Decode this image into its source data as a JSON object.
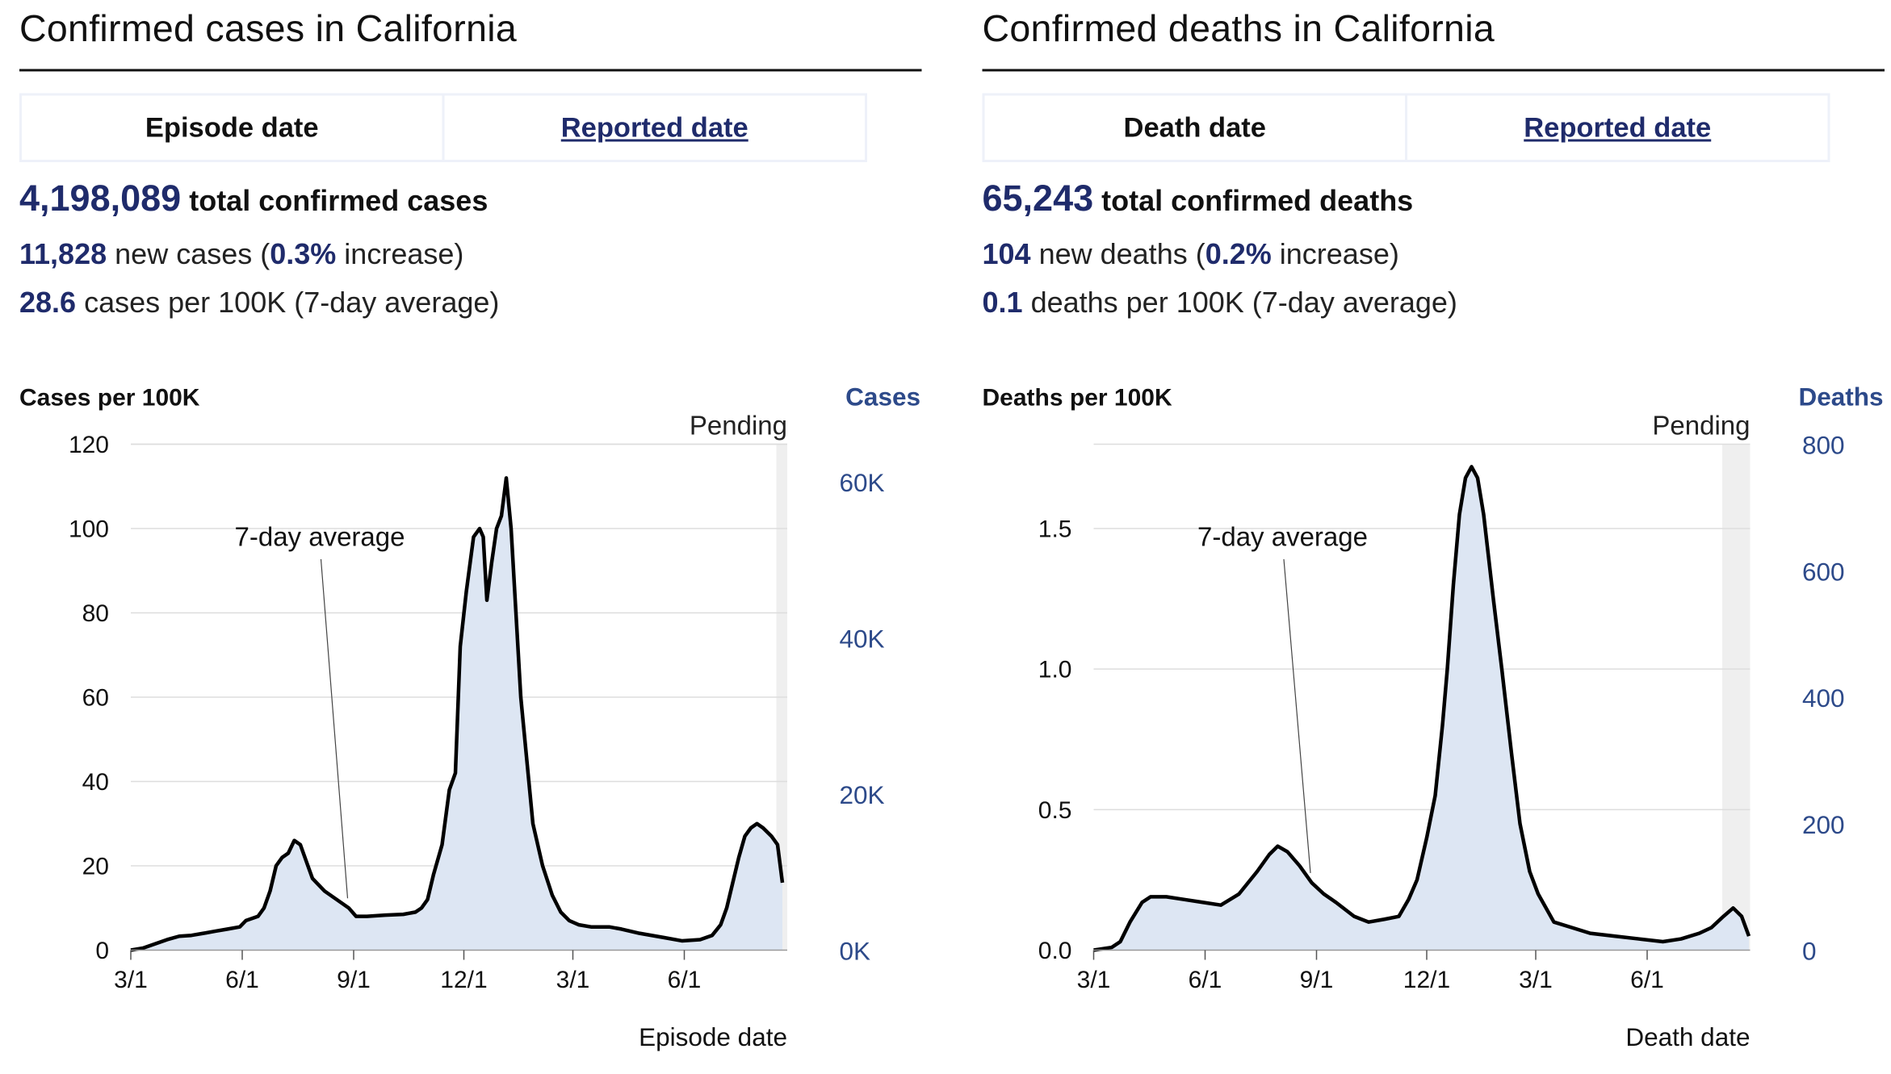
{
  "panels": [
    {
      "title": "Confirmed cases in California",
      "tabs": [
        {
          "label": "Episode date",
          "active": true
        },
        {
          "label": "Reported date",
          "active": false
        }
      ],
      "total": "4,198,089",
      "total_label": "total confirmed cases",
      "new_value": "11,828",
      "new_label": "new cases (",
      "pct": "0.3%",
      "pct_label": "increase)",
      "rate_value": "28.6",
      "rate_label": "cases per 100K (7-day average)"
    },
    {
      "title": "Confirmed deaths in California",
      "tabs": [
        {
          "label": "Death date",
          "active": true
        },
        {
          "label": "Reported date",
          "active": false
        }
      ],
      "total": "65,243",
      "total_label": "total confirmed deaths",
      "new_value": "104",
      "new_label": "new deaths (",
      "pct": "0.2%",
      "pct_label": "increase)",
      "rate_value": "0.1",
      "rate_label": "deaths per 100K (7-day average)"
    }
  ],
  "colors": {
    "navy": "#1f2b6b",
    "right_axis": "#2d4a8a",
    "area": "#dde6f3",
    "line": "#000000",
    "grid": "#dddddd",
    "pending": "#efefef"
  },
  "chart_data": [
    {
      "type": "area",
      "title": "Cases per 100K",
      "ylabel": "Cases per 100K",
      "ylabel_right": "Cases",
      "xlabel": "Episode date",
      "pending_label": "Pending",
      "annotation": "7-day average",
      "ylim": [
        0,
        120
      ],
      "yticks": [
        0,
        20,
        40,
        60,
        80,
        100,
        120
      ],
      "ylim_right": [
        0,
        64800
      ],
      "yticks_right": [
        {
          "value": 0,
          "label": "0K"
        },
        {
          "value": 20000,
          "label": "20K"
        },
        {
          "value": 40000,
          "label": "40K"
        },
        {
          "value": 60000,
          "label": "60K"
        }
      ],
      "xlim_days": [
        0,
        542
      ],
      "xticks": [
        {
          "day": 0,
          "label": "3/1"
        },
        {
          "day": 92,
          "label": "6/1"
        },
        {
          "day": 184,
          "label": "9/1"
        },
        {
          "day": 275,
          "label": "12/1"
        },
        {
          "day": 365,
          "label": "3/1"
        },
        {
          "day": 457,
          "label": "6/1"
        }
      ],
      "pending_from_day": 533,
      "annotation_point_day": 179,
      "series": [
        {
          "name": "7-day average",
          "points": [
            [
              0,
              0
            ],
            [
              10,
              0.5
            ],
            [
              20,
              1.5
            ],
            [
              30,
              2.5
            ],
            [
              40,
              3.3
            ],
            [
              50,
              3.5
            ],
            [
              60,
              4
            ],
            [
              70,
              4.5
            ],
            [
              80,
              5
            ],
            [
              90,
              5.5
            ],
            [
              95,
              7
            ],
            [
              105,
              8
            ],
            [
              110,
              10
            ],
            [
              115,
              14
            ],
            [
              120,
              20
            ],
            [
              125,
              22
            ],
            [
              130,
              23
            ],
            [
              135,
              26
            ],
            [
              140,
              25
            ],
            [
              145,
              21
            ],
            [
              150,
              17
            ],
            [
              160,
              14
            ],
            [
              170,
              12
            ],
            [
              180,
              10
            ],
            [
              186,
              8
            ],
            [
              195,
              8
            ],
            [
              210,
              8.3
            ],
            [
              225,
              8.5
            ],
            [
              235,
              9
            ],
            [
              240,
              10
            ],
            [
              245,
              12
            ],
            [
              250,
              18
            ],
            [
              257,
              25
            ],
            [
              263,
              38
            ],
            [
              268,
              42
            ],
            [
              272,
              72
            ],
            [
              277,
              85
            ],
            [
              283,
              98
            ],
            [
              288,
              100
            ],
            [
              291,
              98
            ],
            [
              294,
              83
            ],
            [
              298,
              92
            ],
            [
              302,
              100
            ],
            [
              306,
              103
            ],
            [
              310,
              112
            ],
            [
              314,
              100
            ],
            [
              318,
              80
            ],
            [
              322,
              60
            ],
            [
              327,
              45
            ],
            [
              332,
              30
            ],
            [
              340,
              20
            ],
            [
              348,
              13
            ],
            [
              355,
              9
            ],
            [
              362,
              7
            ],
            [
              370,
              6
            ],
            [
              380,
              5.5
            ],
            [
              395,
              5.5
            ],
            [
              405,
              5
            ],
            [
              420,
              4
            ],
            [
              440,
              3
            ],
            [
              455,
              2.2
            ],
            [
              470,
              2.5
            ],
            [
              480,
              3.5
            ],
            [
              487,
              6
            ],
            [
              492,
              10
            ],
            [
              497,
              16
            ],
            [
              502,
              22
            ],
            [
              507,
              27
            ],
            [
              512,
              29
            ],
            [
              517,
              30
            ],
            [
              522,
              29
            ],
            [
              529,
              27
            ],
            [
              534,
              25
            ],
            [
              538,
              16
            ]
          ]
        }
      ]
    },
    {
      "type": "area",
      "title": "Deaths per 100K",
      "ylabel": "Deaths per 100K",
      "ylabel_right": "Deaths",
      "xlabel": "Death date",
      "pending_label": "Pending",
      "annotation": "7-day average",
      "ylim": [
        0,
        1.8
      ],
      "yticks": [
        {
          "value": 0,
          "label": "0.0"
        },
        {
          "value": 0.5,
          "label": "0.5"
        },
        {
          "value": 1.0,
          "label": "1.0"
        },
        {
          "value": 1.5,
          "label": "1.5"
        }
      ],
      "ylim_right": [
        0,
        800
      ],
      "yticks_right": [
        {
          "value": 0,
          "label": "0"
        },
        {
          "value": 200,
          "label": "200"
        },
        {
          "value": 400,
          "label": "400"
        },
        {
          "value": 600,
          "label": "600"
        },
        {
          "value": 800,
          "label": "800"
        }
      ],
      "xlim_days": [
        0,
        542
      ],
      "xticks": [
        {
          "day": 0,
          "label": "3/1"
        },
        {
          "day": 92,
          "label": "6/1"
        },
        {
          "day": 184,
          "label": "9/1"
        },
        {
          "day": 275,
          "label": "12/1"
        },
        {
          "day": 365,
          "label": "3/1"
        },
        {
          "day": 457,
          "label": "6/1"
        }
      ],
      "pending_from_day": 519,
      "annotation_point_day": 179,
      "series": [
        {
          "name": "7-day average",
          "points": [
            [
              0,
              0
            ],
            [
              15,
              0.01
            ],
            [
              22,
              0.03
            ],
            [
              30,
              0.1
            ],
            [
              40,
              0.17
            ],
            [
              47,
              0.19
            ],
            [
              60,
              0.19
            ],
            [
              75,
              0.18
            ],
            [
              90,
              0.17
            ],
            [
              105,
              0.16
            ],
            [
              120,
              0.2
            ],
            [
              135,
              0.28
            ],
            [
              145,
              0.34
            ],
            [
              152,
              0.37
            ],
            [
              160,
              0.35
            ],
            [
              170,
              0.3
            ],
            [
              180,
              0.24
            ],
            [
              190,
              0.2
            ],
            [
              200,
              0.17
            ],
            [
              215,
              0.12
            ],
            [
              227,
              0.1
            ],
            [
              240,
              0.11
            ],
            [
              252,
              0.12
            ],
            [
              260,
              0.18
            ],
            [
              267,
              0.25
            ],
            [
              275,
              0.4
            ],
            [
              282,
              0.55
            ],
            [
              288,
              0.8
            ],
            [
              292,
              1.0
            ],
            [
              297,
              1.3
            ],
            [
              302,
              1.55
            ],
            [
              307,
              1.68
            ],
            [
              312,
              1.72
            ],
            [
              317,
              1.68
            ],
            [
              322,
              1.55
            ],
            [
              330,
              1.25
            ],
            [
              337,
              1.0
            ],
            [
              345,
              0.7
            ],
            [
              352,
              0.45
            ],
            [
              360,
              0.28
            ],
            [
              367,
              0.2
            ],
            [
              380,
              0.1
            ],
            [
              395,
              0.08
            ],
            [
              410,
              0.06
            ],
            [
              430,
              0.05
            ],
            [
              450,
              0.04
            ],
            [
              470,
              0.03
            ],
            [
              485,
              0.04
            ],
            [
              500,
              0.06
            ],
            [
              510,
              0.08
            ],
            [
              520,
              0.12
            ],
            [
              528,
              0.15
            ],
            [
              535,
              0.12
            ],
            [
              541,
              0.05
            ]
          ]
        }
      ]
    }
  ]
}
